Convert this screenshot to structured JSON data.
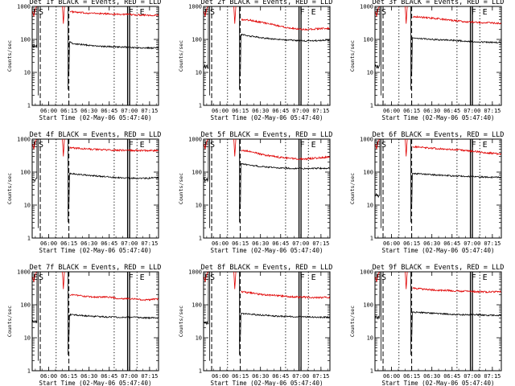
{
  "figure": {
    "x_tick_labels": [
      "06:00",
      "06:15",
      "06:30",
      "06:45",
      "07:00",
      "07:15"
    ],
    "y_tick_labels": [
      "1",
      "10",
      "100",
      "1000"
    ],
    "ylabel": "Counts/sec",
    "xlabel": "Start Time (02-May-06 05:47:40)",
    "markers": {
      "s": "S",
      "f": "F",
      "e": "E",
      "e_left": "E"
    },
    "colors": {
      "events": "#000000",
      "lld": "#e00000"
    }
  },
  "chart_data": [
    {
      "type": "line",
      "title": "Det 1f BLACK = Events, RED = LLD",
      "ylim": [
        1,
        1000
      ],
      "yscale": "log",
      "xlim_minutes_from_start": [
        0,
        94
      ],
      "series": [
        {
          "name": "Events",
          "color": "#000000",
          "level_before_gap": 60,
          "spike_at_min": 27,
          "min_after_spike": 8,
          "x": [
            28,
            30,
            40,
            50,
            60,
            70,
            80,
            94
          ],
          "values": [
            85,
            75,
            68,
            62,
            60,
            58,
            55,
            55
          ]
        },
        {
          "name": "LLD",
          "color": "#e00000",
          "x": [
            28,
            35,
            45,
            55,
            65,
            75,
            85,
            94
          ],
          "values": [
            700,
            650,
            620,
            600,
            580,
            560,
            550,
            540
          ]
        }
      ]
    },
    {
      "type": "line",
      "title": "Det 2f BLACK = Events, RED = LLD",
      "ylim": [
        1,
        1000
      ],
      "yscale": "log",
      "xlim_minutes_from_start": [
        0,
        94
      ],
      "series": [
        {
          "name": "Events",
          "color": "#000000",
          "level_before_gap": 15,
          "spike_at_min": 27,
          "min_after_spike": 8,
          "x": [
            28,
            35,
            45,
            55,
            65,
            75,
            85,
            94
          ],
          "values": [
            140,
            125,
            110,
            100,
            95,
            90,
            92,
            95
          ]
        },
        {
          "name": "LLD",
          "color": "#e00000",
          "x": [
            28,
            35,
            45,
            55,
            65,
            75,
            85,
            94
          ],
          "values": [
            400,
            380,
            320,
            260,
            220,
            200,
            210,
            220
          ]
        }
      ]
    },
    {
      "type": "line",
      "title": "Det 3f BLACK = Events, RED = LLD",
      "ylim": [
        1,
        1000
      ],
      "yscale": "log",
      "xlim_minutes_from_start": [
        0,
        94
      ],
      "series": [
        {
          "name": "Events",
          "color": "#000000",
          "level_before_gap": 15,
          "spike_at_min": 27,
          "min_after_spike": 8,
          "x": [
            28,
            35,
            45,
            55,
            65,
            75,
            85,
            94
          ],
          "values": [
            110,
            105,
            98,
            95,
            90,
            85,
            82,
            80
          ]
        },
        {
          "name": "LLD",
          "color": "#e00000",
          "x": [
            28,
            35,
            45,
            55,
            65,
            75,
            85,
            94
          ],
          "values": [
            500,
            470,
            430,
            390,
            350,
            330,
            320,
            310
          ]
        }
      ]
    },
    {
      "type": "line",
      "title": "Det 4f BLACK = Events, RED = LLD",
      "ylim": [
        1,
        1000
      ],
      "yscale": "log",
      "xlim_minutes_from_start": [
        0,
        94
      ],
      "series": [
        {
          "name": "Events",
          "color": "#000000",
          "level_before_gap": 60,
          "spike_at_min": 27,
          "min_after_spike": 8,
          "x": [
            28,
            35,
            45,
            55,
            65,
            75,
            85,
            94
          ],
          "values": [
            90,
            85,
            78,
            72,
            68,
            65,
            65,
            68
          ]
        },
        {
          "name": "LLD",
          "color": "#e00000",
          "x": [
            28,
            35,
            45,
            55,
            65,
            75,
            85,
            94
          ],
          "values": [
            550,
            520,
            490,
            470,
            460,
            455,
            450,
            445
          ]
        }
      ]
    },
    {
      "type": "line",
      "title": "Det 5f BLACK = Events, RED = LLD",
      "ylim": [
        1,
        1000
      ],
      "yscale": "log",
      "xlim_minutes_from_start": [
        0,
        94
      ],
      "series": [
        {
          "name": "Events",
          "color": "#000000",
          "level_before_gap": 60,
          "spike_at_min": 27,
          "min_after_spike": 8,
          "x": [
            28,
            35,
            45,
            55,
            65,
            75,
            85,
            94
          ],
          "values": [
            180,
            160,
            145,
            135,
            130,
            128,
            130,
            132
          ]
        },
        {
          "name": "LLD",
          "color": "#e00000",
          "x": [
            28,
            35,
            45,
            55,
            65,
            75,
            85,
            94
          ],
          "values": [
            450,
            420,
            330,
            290,
            260,
            250,
            270,
            290
          ]
        }
      ]
    },
    {
      "type": "line",
      "title": "Det 6f BLACK = Events, RED = LLD",
      "ylim": [
        1,
        1000
      ],
      "yscale": "log",
      "xlim_minutes_from_start": [
        0,
        94
      ],
      "series": [
        {
          "name": "Events",
          "color": "#000000",
          "level_before_gap": 20,
          "spike_at_min": 27,
          "min_after_spike": 8,
          "x": [
            28,
            35,
            45,
            55,
            65,
            75,
            85,
            94
          ],
          "values": [
            90,
            88,
            82,
            78,
            75,
            72,
            70,
            70
          ]
        },
        {
          "name": "LLD",
          "color": "#e00000",
          "x": [
            28,
            35,
            45,
            55,
            65,
            75,
            85,
            94
          ],
          "values": [
            600,
            560,
            520,
            490,
            460,
            420,
            380,
            350
          ]
        }
      ]
    },
    {
      "type": "line",
      "title": "Det 7f BLACK = Events, RED = LLD",
      "ylim": [
        1,
        1000
      ],
      "yscale": "log",
      "xlim_minutes_from_start": [
        0,
        94
      ],
      "series": [
        {
          "name": "Events",
          "color": "#000000",
          "level_before_gap": 30,
          "spike_at_min": 27,
          "min_after_spike": 8,
          "x": [
            28,
            35,
            45,
            55,
            65,
            75,
            85,
            94
          ],
          "values": [
            50,
            48,
            45,
            43,
            42,
            42,
            40,
            40
          ]
        },
        {
          "name": "LLD",
          "color": "#e00000",
          "x": [
            28,
            35,
            45,
            55,
            65,
            75,
            85,
            94
          ],
          "values": [
            200,
            190,
            170,
            175,
            155,
            150,
            140,
            150
          ]
        }
      ]
    },
    {
      "type": "line",
      "title": "Det 8f BLACK = Events, RED = LLD",
      "ylim": [
        1,
        1000
      ],
      "yscale": "log",
      "xlim_minutes_from_start": [
        0,
        94
      ],
      "series": [
        {
          "name": "Events",
          "color": "#000000",
          "level_before_gap": 30,
          "spike_at_min": 27,
          "min_after_spike": 8,
          "x": [
            28,
            35,
            45,
            55,
            65,
            75,
            85,
            94
          ],
          "values": [
            55,
            52,
            48,
            45,
            44,
            43,
            42,
            42
          ]
        },
        {
          "name": "LLD",
          "color": "#e00000",
          "x": [
            28,
            35,
            45,
            55,
            65,
            75,
            85,
            94
          ],
          "values": [
            250,
            230,
            200,
            190,
            175,
            170,
            165,
            170
          ]
        }
      ]
    },
    {
      "type": "line",
      "title": "Det 9f BLACK = Events, RED = LLD",
      "ylim": [
        1,
        1000
      ],
      "yscale": "log",
      "xlim_minutes_from_start": [
        0,
        94
      ],
      "series": [
        {
          "name": "Events",
          "color": "#000000",
          "level_before_gap": 40,
          "spike_at_min": 27,
          "min_after_spike": 8,
          "x": [
            28,
            35,
            45,
            55,
            65,
            75,
            85,
            94
          ],
          "values": [
            60,
            58,
            55,
            52,
            50,
            50,
            48,
            48
          ]
        },
        {
          "name": "LLD",
          "color": "#e00000",
          "x": [
            28,
            35,
            45,
            55,
            65,
            75,
            85,
            94
          ],
          "values": [
            320,
            300,
            280,
            270,
            260,
            250,
            245,
            250
          ]
        }
      ]
    }
  ]
}
